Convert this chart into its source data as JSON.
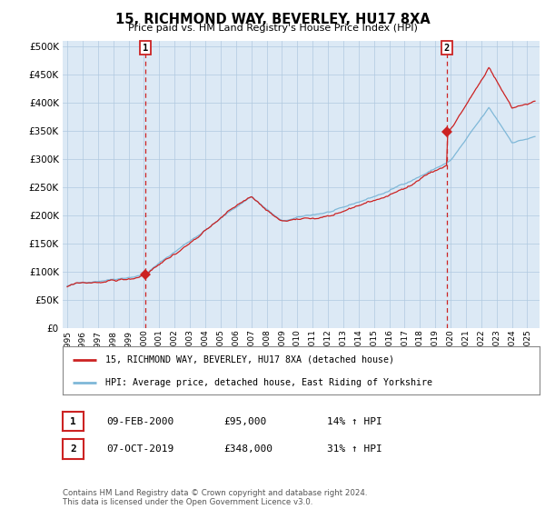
{
  "title": "15, RICHMOND WAY, BEVERLEY, HU17 8XA",
  "subtitle": "Price paid vs. HM Land Registry's House Price Index (HPI)",
  "ytick_values": [
    0,
    50000,
    100000,
    150000,
    200000,
    250000,
    300000,
    350000,
    400000,
    450000,
    500000
  ],
  "ylim": [
    0,
    510000
  ],
  "xlim_start": 1994.7,
  "xlim_end": 2025.8,
  "xtick_years": [
    1995,
    1996,
    1997,
    1998,
    1999,
    2000,
    2001,
    2002,
    2003,
    2004,
    2005,
    2006,
    2007,
    2008,
    2009,
    2010,
    2011,
    2012,
    2013,
    2014,
    2015,
    2016,
    2017,
    2018,
    2019,
    2020,
    2021,
    2022,
    2023,
    2024,
    2025
  ],
  "hpi_color": "#7fb8d8",
  "price_color": "#cc2222",
  "dashed_color": "#cc2222",
  "marker_color": "#cc2222",
  "plot_bg_color": "#dce9f5",
  "sale1_x": 2000.1,
  "sale1_y": 95000,
  "sale2_x": 2019.75,
  "sale2_y": 348000,
  "sale1_label": "1",
  "sale2_label": "2",
  "legend1_text": "15, RICHMOND WAY, BEVERLEY, HU17 8XA (detached house)",
  "legend2_text": "HPI: Average price, detached house, East Riding of Yorkshire",
  "table_row1": [
    "1",
    "09-FEB-2000",
    "£95,000",
    "14% ↑ HPI"
  ],
  "table_row2": [
    "2",
    "07-OCT-2019",
    "£348,000",
    "31% ↑ HPI"
  ],
  "footer": "Contains HM Land Registry data © Crown copyright and database right 2024.\nThis data is licensed under the Open Government Licence v3.0.",
  "background_color": "#ffffff",
  "grid_color": "#b0c8e0"
}
